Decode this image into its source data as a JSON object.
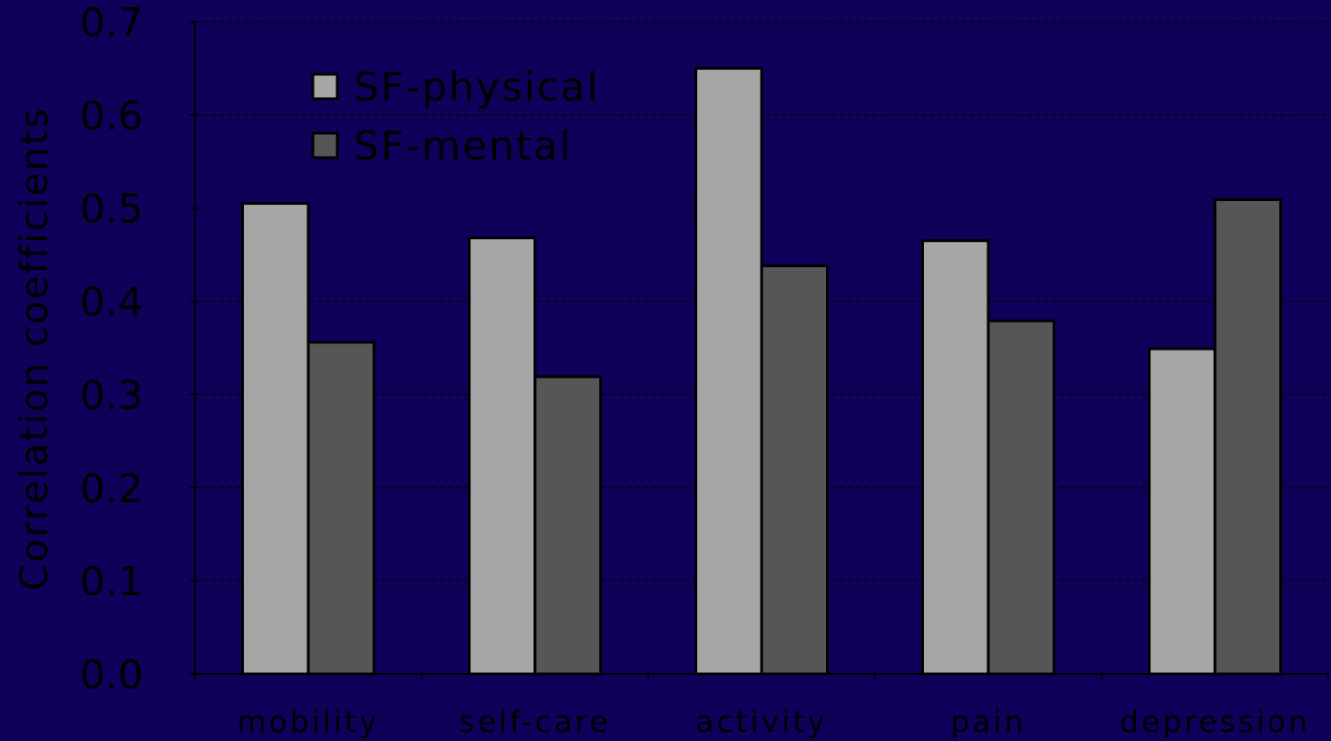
{
  "chart_data": {
    "type": "bar",
    "title": "",
    "xlabel": "",
    "ylabel": "Correlation coefficients",
    "ylim": [
      0,
      0.7
    ],
    "yticks": [
      "0.0",
      "0.1",
      "0.2",
      "0.3",
      "0.4",
      "0.5",
      "0.6",
      "0.7"
    ],
    "grid": true,
    "legend_position": "top-left",
    "categories": [
      "mobility",
      "self-care",
      "activity",
      "pain",
      "depression"
    ],
    "series": [
      {
        "name": "SF-physical",
        "color": "#a6a6a6",
        "values": [
          0.505,
          0.468,
          0.65,
          0.465,
          0.349
        ]
      },
      {
        "name": "SF-mental",
        "color": "#565656",
        "values": [
          0.356,
          0.319,
          0.438,
          0.379,
          0.509
        ]
      }
    ],
    "background_color": "#10005a"
  }
}
